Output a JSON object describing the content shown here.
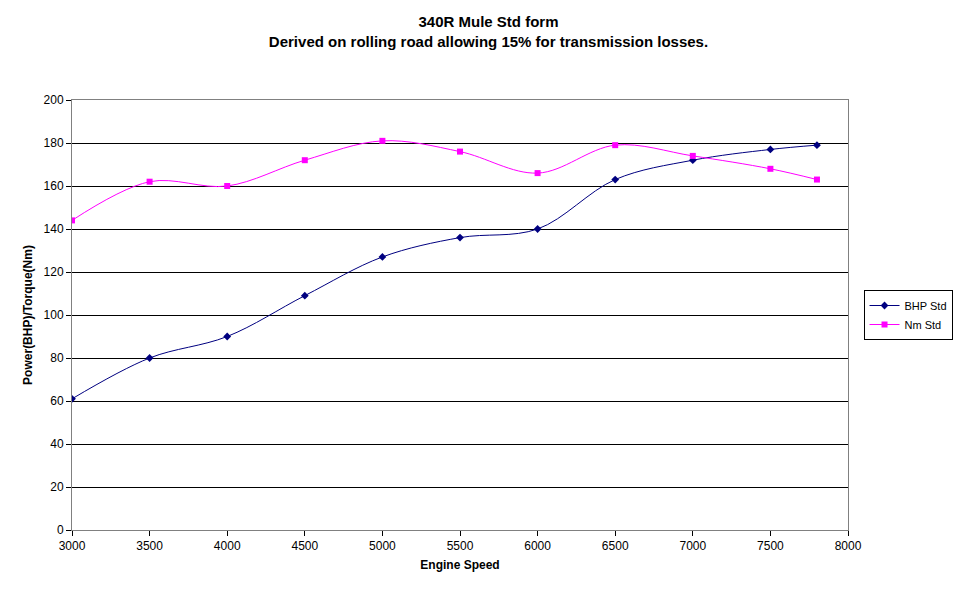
{
  "chart_data": {
    "type": "line",
    "title": "340R Mule Std form",
    "subtitle": "Derived on rolling road allowing 15% for transmission losses.",
    "x_label": "Engine Speed",
    "y_label": "Power(BHP)/Torque(Nm)",
    "x": [
      3000,
      3500,
      4000,
      4500,
      5000,
      5500,
      6000,
      6500,
      7000,
      7500,
      7800
    ],
    "series": [
      {
        "name": "BHP Std",
        "color": "#000080",
        "marker": "diamond",
        "line_style": "smooth",
        "values": [
          61,
          80,
          90,
          109,
          127,
          136,
          140,
          163,
          172,
          177,
          179
        ]
      },
      {
        "name": "Nm Std",
        "color": "#ff00ff",
        "marker": "square",
        "line_style": "smooth",
        "values": [
          144,
          162,
          160,
          172,
          181,
          176,
          166,
          179,
          174,
          168,
          163
        ]
      }
    ],
    "xlim": [
      3000,
      8000
    ],
    "xticks": [
      3000,
      3500,
      4000,
      4500,
      5000,
      5500,
      6000,
      6500,
      7000,
      7500,
      8000
    ],
    "ylim": [
      0,
      200
    ],
    "yticks": [
      0,
      20,
      40,
      60,
      80,
      100,
      120,
      140,
      160,
      180,
      200
    ],
    "grid": true,
    "legend": "right"
  }
}
